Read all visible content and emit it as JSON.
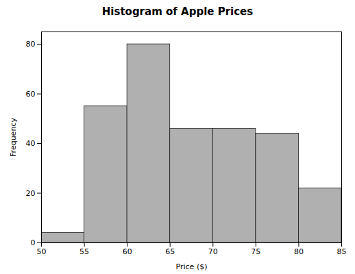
{
  "chart_data": {
    "type": "histogram",
    "title": "Histogram of Apple Prices",
    "xlabel": "Price ($)",
    "ylabel": "Frequency",
    "bins": [
      50,
      55,
      60,
      65,
      70,
      75,
      80,
      85
    ],
    "values": [
      4,
      55,
      80,
      46,
      46,
      44,
      22
    ],
    "color": "#b0b0b0",
    "xlim": [
      50,
      85
    ],
    "ylim": [
      0,
      85
    ],
    "xticks": [
      50,
      55,
      60,
      65,
      70,
      75,
      80,
      85
    ],
    "yticks": [
      0,
      20,
      40,
      60,
      80
    ],
    "grid": false
  }
}
